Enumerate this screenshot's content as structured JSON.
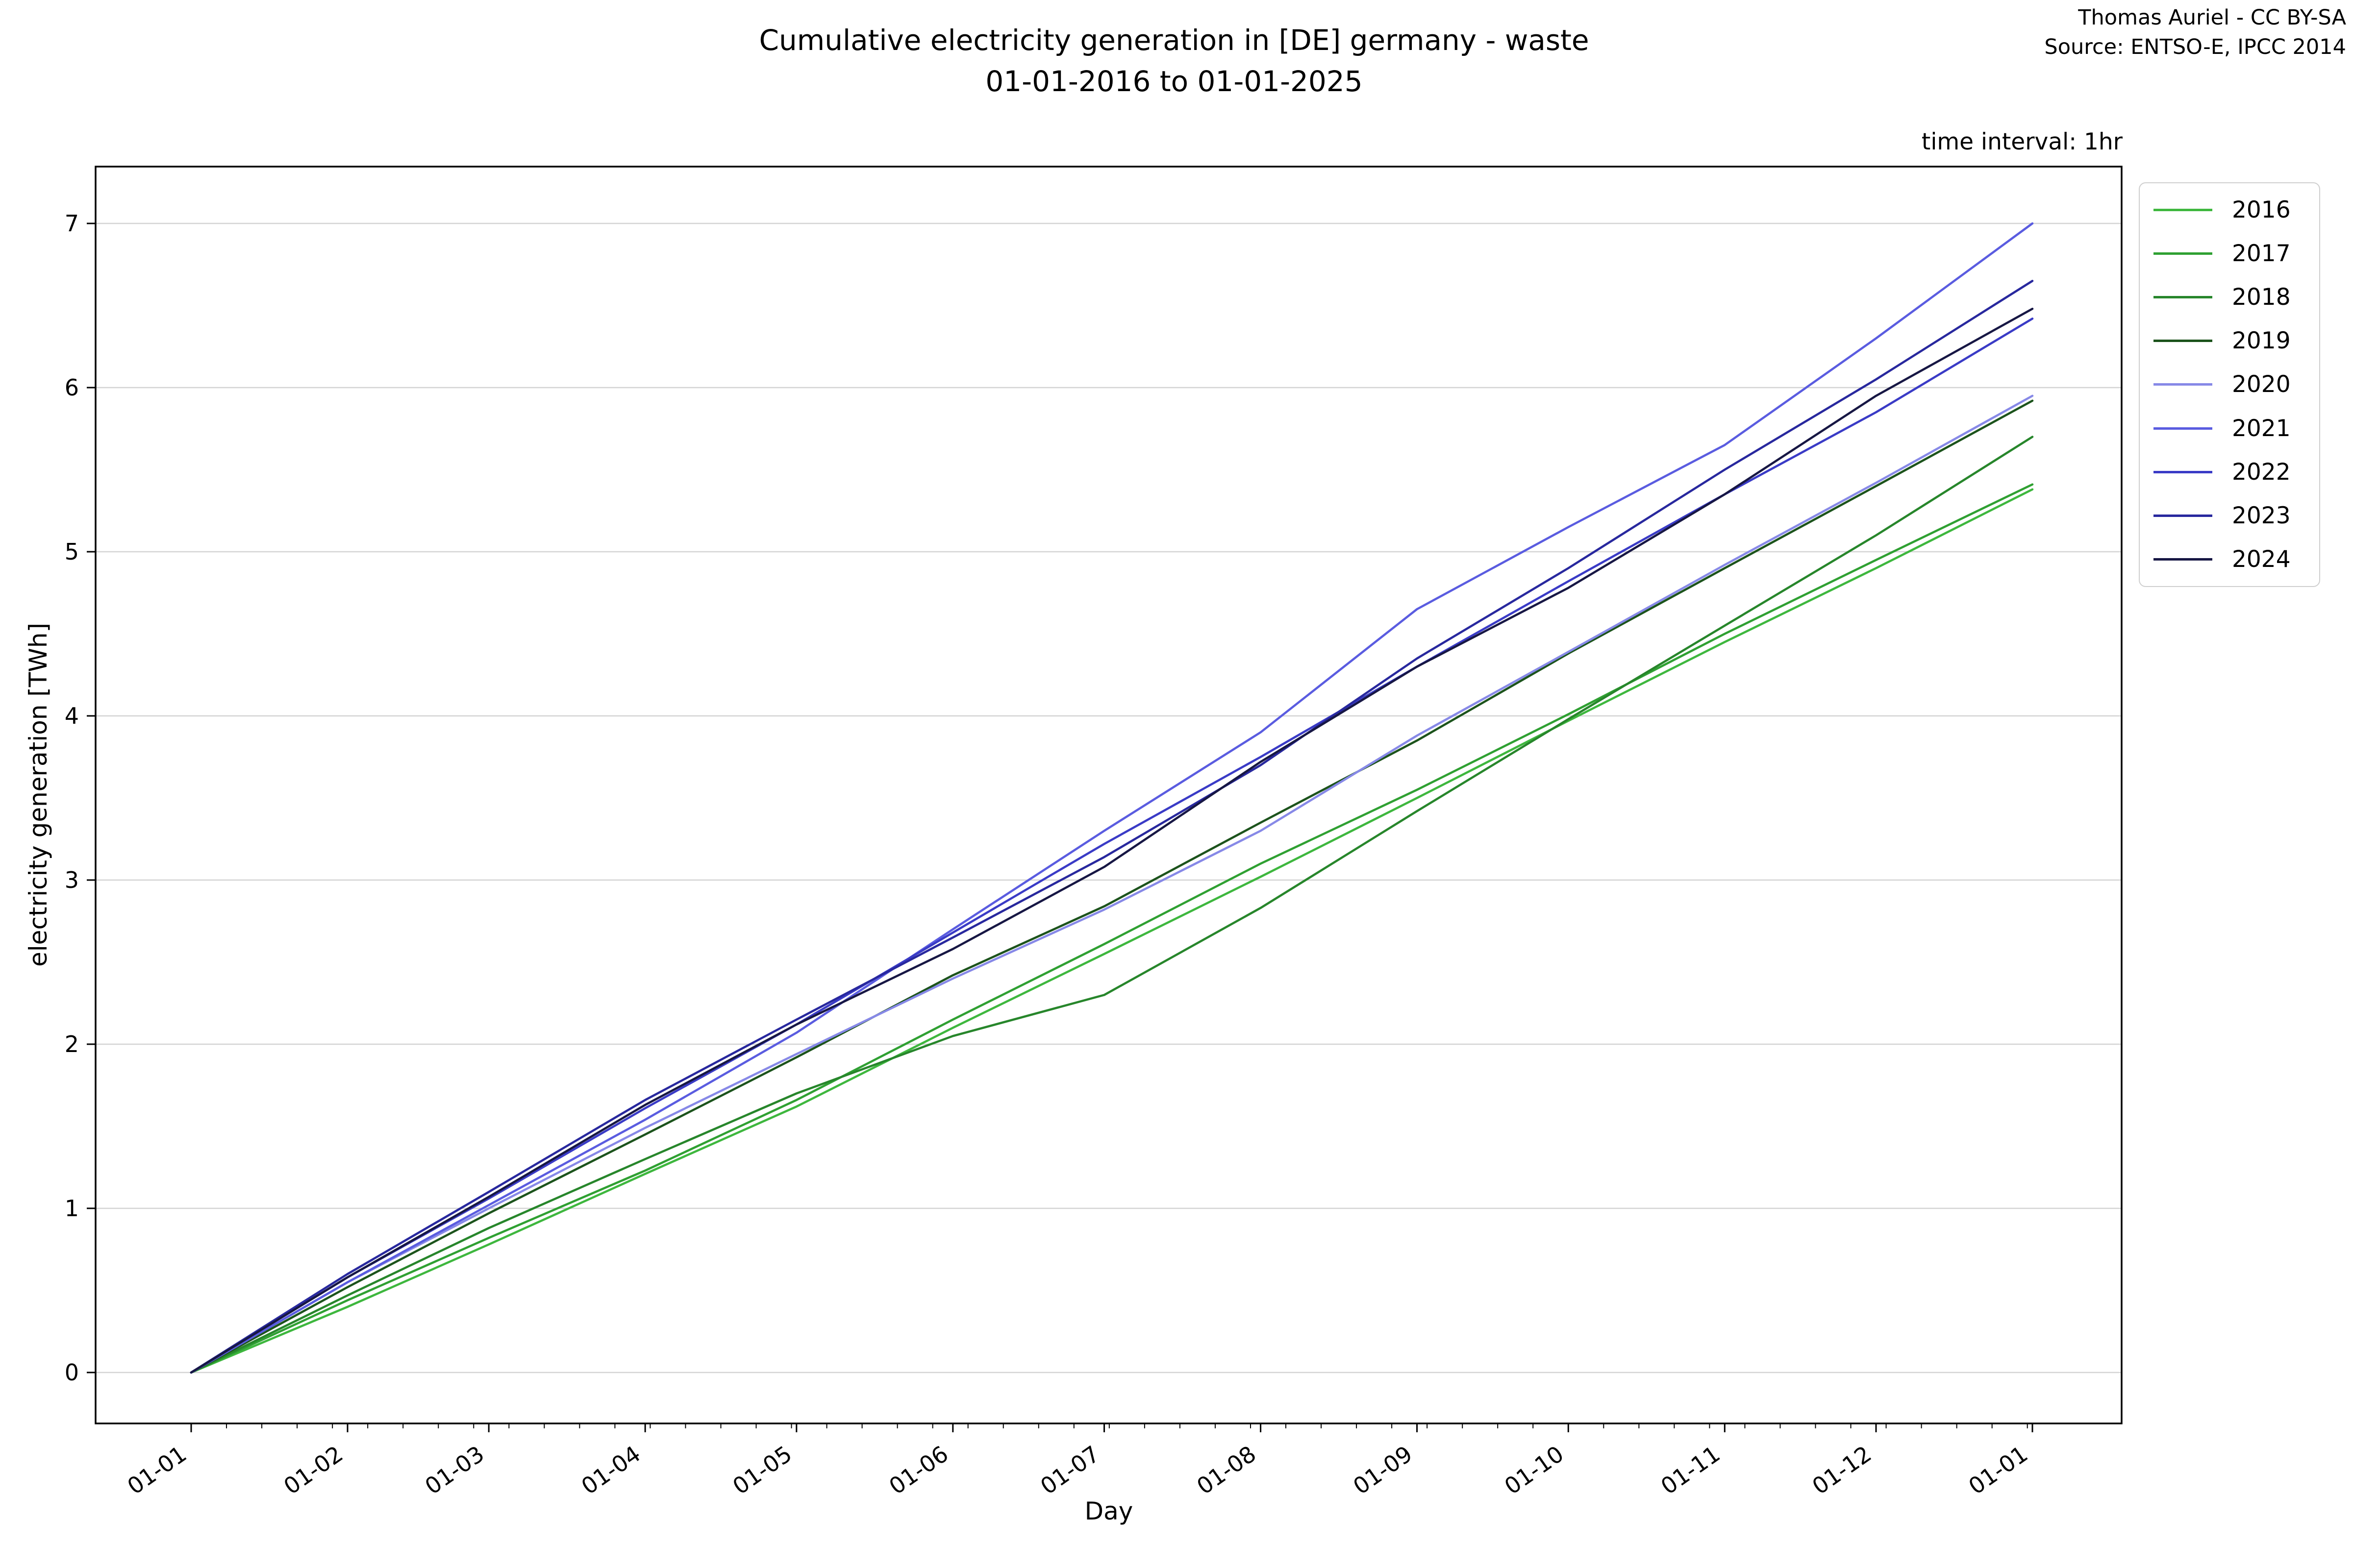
{
  "header": {
    "title_line1": "Cumulative electricity generation in [DE] germany - waste",
    "title_line2": "01-01-2016 to 01-01-2025",
    "attribution_line1": "Thomas Auriel - CC BY-SA",
    "attribution_line2": "Source: ENTSO-E, IPCC 2014",
    "time_interval_note": "time interval: 1hr"
  },
  "chart_data": {
    "type": "line",
    "title": "Cumulative electricity generation in [DE] germany - waste 01-01-2016 to 01-01-2025",
    "xlabel": "Day",
    "ylabel": "electricity generation [TWh]",
    "x_tick_labels": [
      "01-01",
      "01-02",
      "01-03",
      "01-04",
      "01-05",
      "01-06",
      "01-07",
      "01-08",
      "01-09",
      "01-10",
      "01-11",
      "01-12",
      "01-01"
    ],
    "x_tick_days": [
      0,
      31,
      59,
      90,
      120,
      151,
      181,
      212,
      243,
      273,
      304,
      334,
      365
    ],
    "x_minor_tick_interval_days": 7,
    "y_ticks": [
      "0",
      "1",
      "2",
      "3",
      "4",
      "5",
      "6",
      "7"
    ],
    "ylim": [
      0,
      7
    ],
    "xlim_days": [
      0,
      365
    ],
    "grid": "horizontal",
    "grid_color": "#d4d4d4",
    "legend_position": "upper right outside",
    "x_days": [
      0,
      31,
      59,
      90,
      120,
      151,
      181,
      212,
      243,
      273,
      304,
      334,
      365
    ],
    "series": [
      {
        "name": "2016",
        "color": "#3eb73e",
        "values": [
          0,
          0.4,
          0.78,
          1.21,
          1.62,
          2.1,
          2.55,
          3.02,
          3.5,
          3.97,
          4.45,
          4.9,
          5.38
        ]
      },
      {
        "name": "2017",
        "color": "#2fa032",
        "values": [
          0,
          0.44,
          0.82,
          1.23,
          1.66,
          2.15,
          2.61,
          3.1,
          3.55,
          4.01,
          4.5,
          4.95,
          5.41
        ]
      },
      {
        "name": "2018",
        "color": "#27862b",
        "values": [
          0,
          0.47,
          0.88,
          1.3,
          1.7,
          2.05,
          2.3,
          2.83,
          3.42,
          3.98,
          4.55,
          5.1,
          5.7
        ]
      },
      {
        "name": "2019",
        "color": "#1c531c",
        "values": [
          0,
          0.52,
          0.97,
          1.45,
          1.92,
          2.42,
          2.84,
          3.35,
          3.85,
          4.38,
          4.9,
          5.4,
          5.92
        ]
      },
      {
        "name": "2020",
        "color": "#8789e7",
        "values": [
          0,
          0.55,
          1.0,
          1.49,
          1.94,
          2.4,
          2.82,
          3.3,
          3.88,
          4.39,
          4.92,
          5.42,
          5.95
        ]
      },
      {
        "name": "2021",
        "color": "#5a5ce0",
        "values": [
          0,
          0.55,
          1.02,
          1.54,
          2.07,
          2.7,
          3.3,
          3.9,
          4.65,
          5.15,
          5.65,
          6.3,
          7.0
        ]
      },
      {
        "name": "2022",
        "color": "#3a3bc6",
        "values": [
          0,
          0.58,
          1.06,
          1.61,
          2.12,
          2.68,
          3.22,
          3.75,
          4.3,
          4.82,
          5.35,
          5.85,
          6.42
        ]
      },
      {
        "name": "2023",
        "color": "#28289e",
        "values": [
          0,
          0.6,
          1.1,
          1.66,
          2.15,
          2.65,
          3.14,
          3.7,
          4.35,
          4.9,
          5.5,
          6.05,
          6.65
        ]
      },
      {
        "name": "2024",
        "color": "#171744",
        "values": [
          0,
          0.58,
          1.07,
          1.63,
          2.12,
          2.58,
          3.08,
          3.72,
          4.3,
          4.78,
          5.35,
          5.95,
          6.48
        ]
      }
    ]
  }
}
